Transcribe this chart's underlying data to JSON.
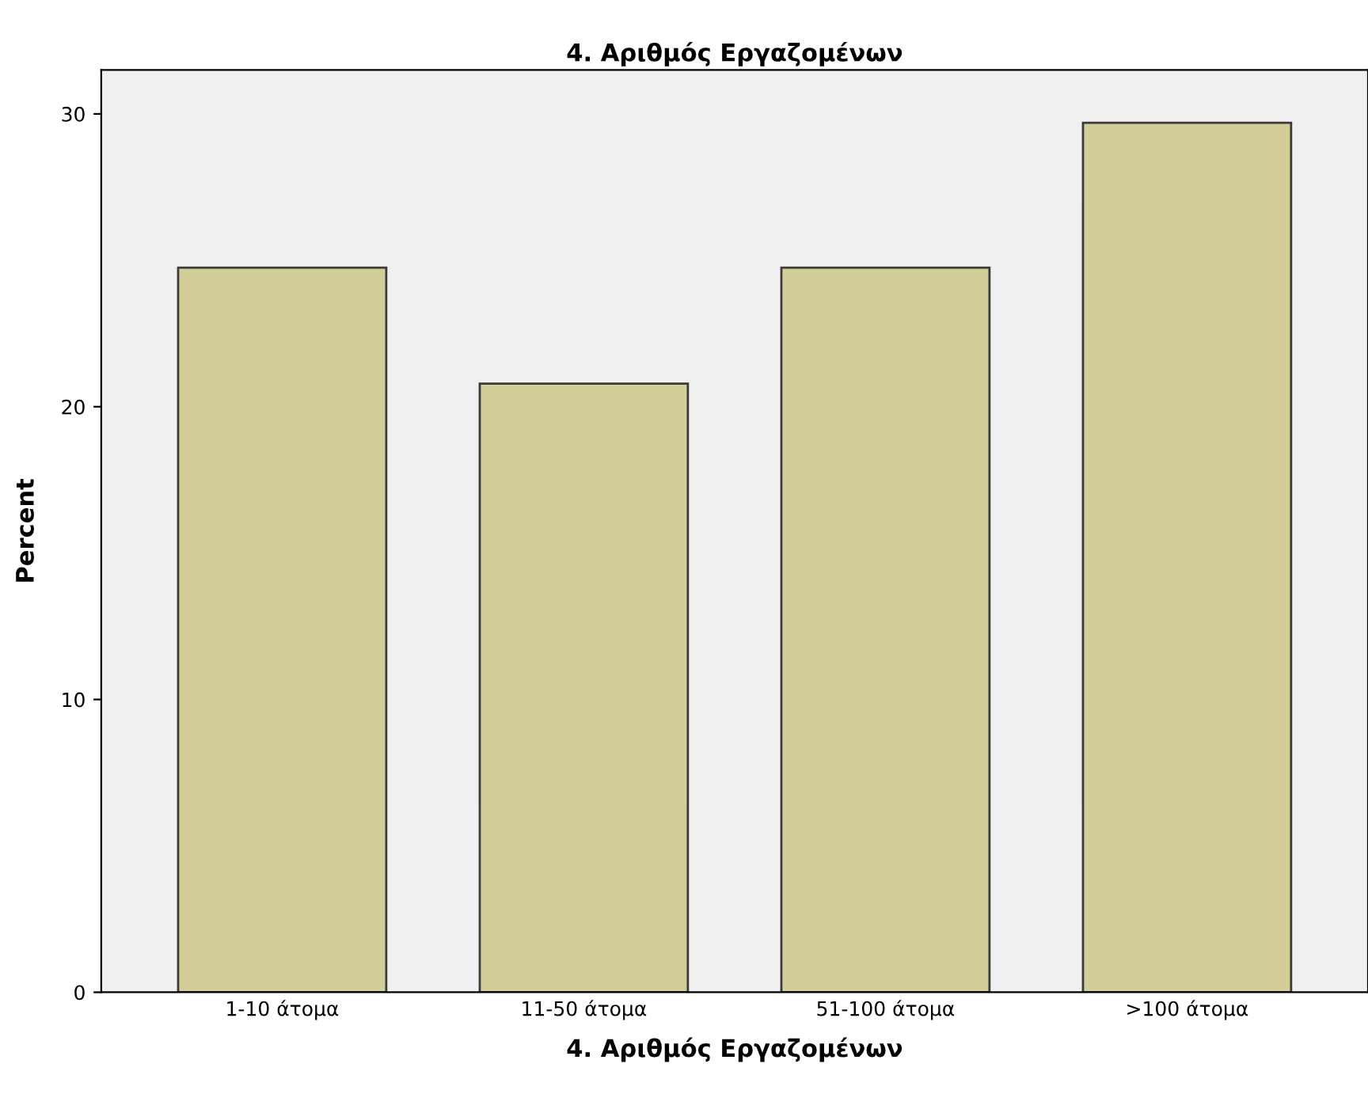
{
  "chart_data": {
    "type": "bar",
    "title": "4. Αριθμός Εργαζομένων",
    "xlabel": "4. Αριθμός Εργαζομένων",
    "ylabel": "Percent",
    "categories": [
      "1-10 άτομα",
      "11-50 άτομα",
      "51-100 άτομα",
      ">100 άτομα"
    ],
    "values": [
      24.75,
      20.79,
      24.75,
      29.7
    ],
    "color": "#d3ce98",
    "ylim": [
      0,
      31.5
    ],
    "yticks": [
      0,
      10,
      20,
      30
    ],
    "grid": false
  }
}
